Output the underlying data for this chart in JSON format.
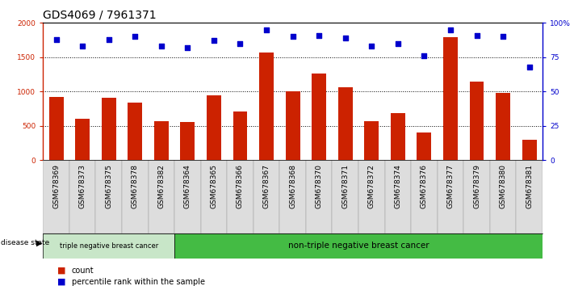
{
  "title": "GDS4069 / 7961371",
  "samples": [
    "GSM678369",
    "GSM678373",
    "GSM678375",
    "GSM678378",
    "GSM678382",
    "GSM678364",
    "GSM678365",
    "GSM678366",
    "GSM678367",
    "GSM678368",
    "GSM678370",
    "GSM678371",
    "GSM678372",
    "GSM678374",
    "GSM678376",
    "GSM678377",
    "GSM678379",
    "GSM678380",
    "GSM678381"
  ],
  "counts": [
    920,
    600,
    910,
    840,
    570,
    560,
    940,
    710,
    1570,
    1000,
    1260,
    1060,
    570,
    690,
    400,
    1790,
    1140,
    980,
    300
  ],
  "percentiles": [
    88,
    83,
    88,
    90,
    83,
    82,
    87,
    85,
    95,
    90,
    91,
    89,
    83,
    85,
    76,
    95,
    91,
    90,
    68
  ],
  "ylim_left": [
    0,
    2000
  ],
  "ylim_right": [
    0,
    100
  ],
  "yticks_left": [
    0,
    500,
    1000,
    1500,
    2000
  ],
  "ytick_labels_left": [
    "0",
    "500",
    "1000",
    "1500",
    "2000"
  ],
  "yticks_right": [
    0,
    25,
    50,
    75,
    100
  ],
  "ytick_labels_right": [
    "0",
    "25",
    "50",
    "75",
    "100%"
  ],
  "bar_color": "#cc2200",
  "dot_color": "#0000cc",
  "triple_neg_count": 5,
  "triple_neg_label": "triple negative breast cancer",
  "non_triple_neg_label": "non-triple negative breast cancer",
  "triple_neg_color": "#c8e6c8",
  "non_triple_neg_color": "#44bb44",
  "disease_state_label": "disease state",
  "legend_count_label": "count",
  "legend_pct_label": "percentile rank within the sample",
  "title_fontsize": 10,
  "tick_fontsize": 6.5,
  "bar_width": 0.55,
  "bg_color": "#ffffff",
  "plot_bg_color": "#ffffff",
  "sample_box_color": "#dddddd"
}
